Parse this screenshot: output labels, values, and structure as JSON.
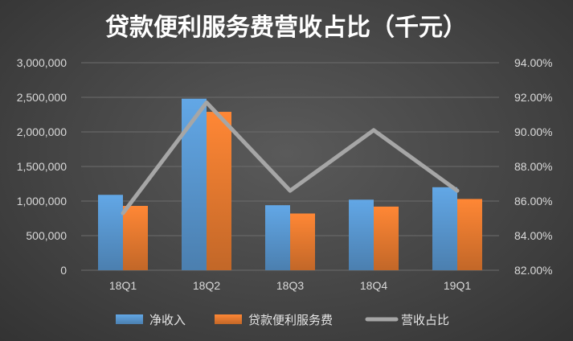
{
  "chart_data": {
    "type": "bar",
    "title": "贷款便利服务费营收占比（千元）",
    "categories": [
      "18Q1",
      "18Q2",
      "18Q3",
      "18Q4",
      "19Q1"
    ],
    "series": [
      {
        "name": "净收入",
        "kind": "bar",
        "axis": "left",
        "color": "#5b9bd5",
        "values": [
          1090000,
          2480000,
          940000,
          1020000,
          1200000
        ]
      },
      {
        "name": "贷款便利服务费",
        "kind": "bar",
        "axis": "left",
        "color": "#ed7d31",
        "values": [
          930000,
          2290000,
          820000,
          920000,
          1030000
        ]
      },
      {
        "name": "营收占比",
        "kind": "line",
        "axis": "right",
        "color": "#a6a6a6",
        "values": [
          0.853,
          0.917,
          0.866,
          0.901,
          0.866
        ]
      }
    ],
    "left_axis": {
      "min": 0,
      "max": 3000000,
      "step": 500000,
      "tick_labels": [
        "0",
        "500,000",
        "1,000,000",
        "1,500,000",
        "2,000,000",
        "2,500,000",
        "3,000,000"
      ]
    },
    "right_axis": {
      "min": 0.82,
      "max": 0.94,
      "step": 0.02,
      "tick_labels": [
        "82.00%",
        "84.00%",
        "86.00%",
        "88.00%",
        "90.00%",
        "92.00%",
        "94.00%"
      ]
    },
    "grid": true,
    "legend": "bottom"
  }
}
